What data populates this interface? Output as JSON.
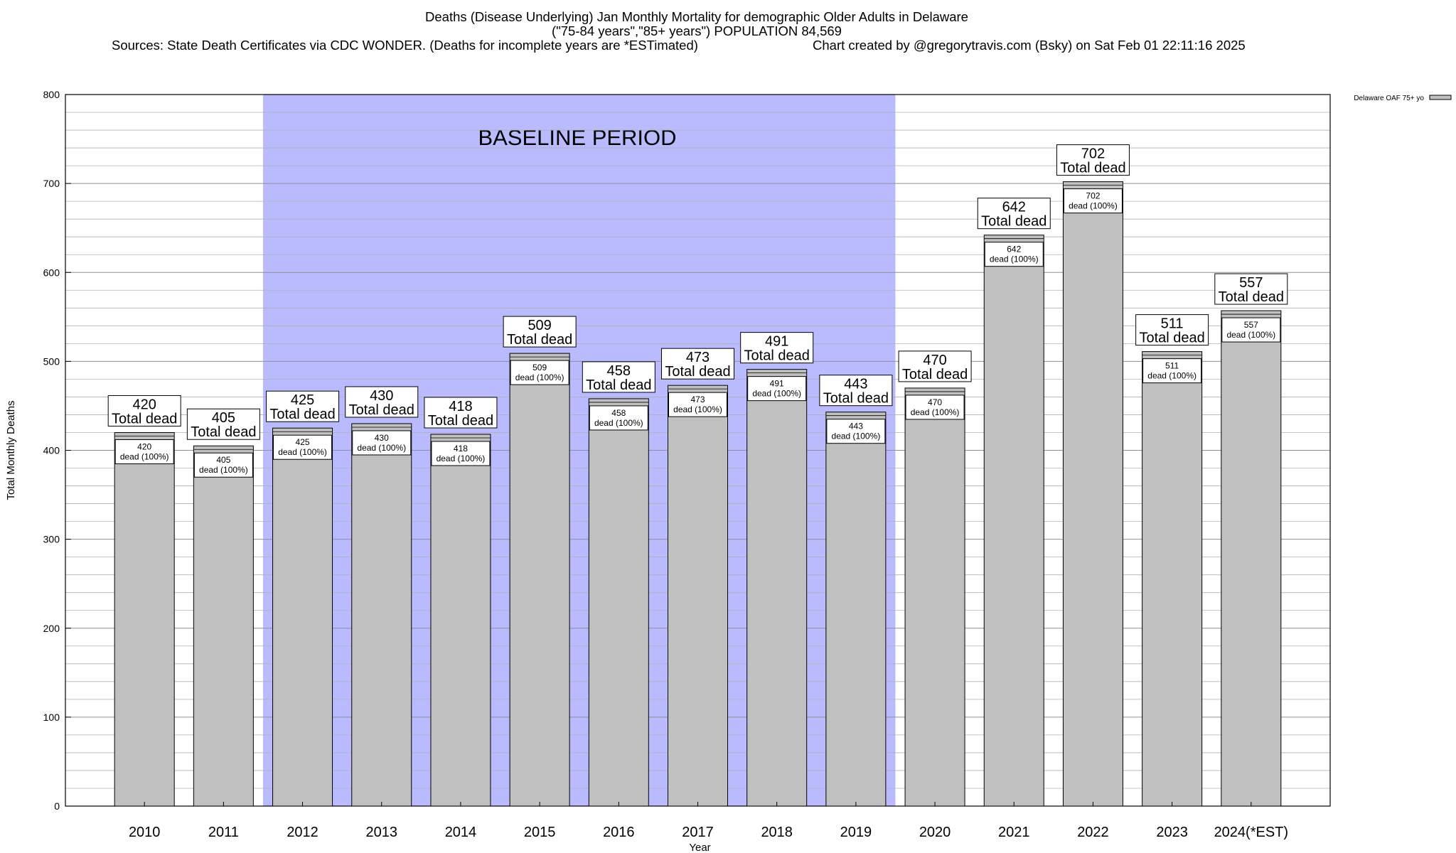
{
  "title": {
    "line1": "Deaths (Disease Underlying) Jan Monthly Mortality for demographic Older Adults in Delaware",
    "line2": "(\"75-84 years\",\"85+ years\") POPULATION 84,569",
    "sources": "Sources: State Death Certificates via CDC WONDER. (Deaths for incomplete years are *ESTimated)",
    "credit": "Chart created by @gregorytravis.com (Bsky) on Sat Feb 01 22:11:16 2025"
  },
  "chart_data": {
    "type": "bar",
    "categories": [
      "2010",
      "2011",
      "2012",
      "2013",
      "2014",
      "2015",
      "2016",
      "2017",
      "2018",
      "2019",
      "2020",
      "2021",
      "2022",
      "2023",
      "2024(*EST)"
    ],
    "series": [
      {
        "name": "Delaware OAF 75+ yo",
        "values": [
          420,
          405,
          425,
          430,
          418,
          509,
          458,
          473,
          491,
          443,
          470,
          642,
          702,
          511,
          557
        ]
      }
    ],
    "ylabel": "Total Monthly Deaths",
    "xlabel": "Year",
    "ylim": [
      0,
      800
    ],
    "yticks": [
      0,
      100,
      200,
      300,
      400,
      500,
      600,
      700,
      800
    ],
    "grid": true,
    "legend": "top-right",
    "baseline": {
      "label": "BASELINE PERIOD",
      "from": "2012",
      "to": "2019"
    },
    "bar_label_suffix": "Total dead",
    "inner_label_suffix": "dead (100%)",
    "colors": {
      "bar": "#c0c0c0",
      "baseline": "#babaff",
      "grid": "#b0b0b0"
    }
  }
}
